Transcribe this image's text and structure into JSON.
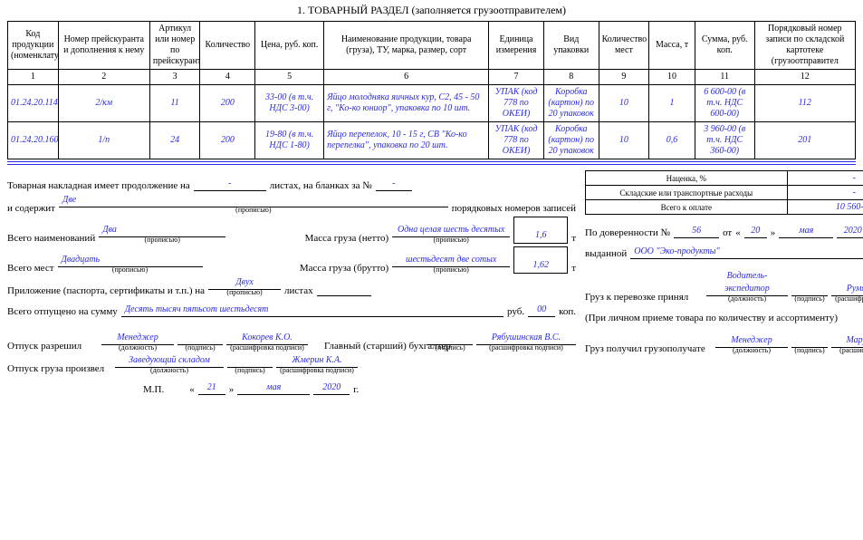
{
  "title": "1. ТОВАРНЫЙ РАЗДЕЛ (заполняется грузоотправителем)",
  "headers": {
    "c1": "Код продукции (номенклатурный",
    "c2": "Номер прейскуранта и дополнения к нему",
    "c3": "Артикул или номер по прейскуранту",
    "c4": "Количество",
    "c5": "Цена, руб. коп.",
    "c6": "Наименование продукции, товара (груза), ТУ, марка, размер, сорт",
    "c7": "Единица измерения",
    "c8": "Вид упаковки",
    "c9": "Количество мест",
    "c10": "Масса, т",
    "c11": "Сумма, руб. коп.",
    "c12": "Порядковый номер записи по складской картотеке (грузоотправител"
  },
  "nums": {
    "n1": "1",
    "n2": "2",
    "n3": "3",
    "n4": "4",
    "n5": "5",
    "n6": "6",
    "n7": "7",
    "n8": "8",
    "n9": "9",
    "n10": "10",
    "n11": "11",
    "n12": "12"
  },
  "rows": [
    {
      "c1": "01.24.20.114",
      "c2": "2/км",
      "c3": "11",
      "c4": "200",
      "c5": "33-00 (в т.ч. НДС 3-00)",
      "c6": "Яйцо молодняка яичных кур, С2, 45 - 50 г, \"Ко-ко юниор\", упаковка по 10 шт.",
      "c7": "УПАК (код 778 по ОКЕИ)",
      "c8": "Коробка (картон) по 20 упаковок",
      "c9": "10",
      "c10": "1",
      "c11": "6 600-00 (в т.ч. НДС 600-00)",
      "c12": "112"
    },
    {
      "c1": "01.24.20.160",
      "c2": "1/п",
      "c3": "24",
      "c4": "200",
      "c5": "19-80 (в т.ч. НДС 1-80)",
      "c6": "Яйцо перепелок, 10 - 15 г, СВ \"Ко-ко перепелка\", упаковка по 20 шт.",
      "c7": "УПАК (код 778 по ОКЕИ)",
      "c8": "Коробка (картон) по 20 упаковок",
      "c9": "10",
      "c10": "0,6",
      "c11": "3 960-00 (в т.ч. НДС 360-00)",
      "c12": "201"
    }
  ],
  "text": {
    "cont_prefix": "Товарная накладная имеет продолжение на",
    "cont_dash": "-",
    "cont_mid": "листах, на бланках за №",
    "cont_dash2": "-",
    "contains_prefix": "и содержит",
    "contains_val": "Две",
    "contains_suffix": "порядковых номеров записей",
    "propisyu": "(прописью)",
    "names_prefix": "Всего наименований",
    "names_val": "Два",
    "mass_net": "Масса груза (нетто)",
    "mass_net_words": "Одна целая шесть десятых",
    "mass_net_num": "1,6",
    "t": "т",
    "places_prefix": "Всего мест",
    "places_val": "Двадцать",
    "mass_gross": "Масса груза (брутто)",
    "mass_gross_words": "шестьдесят две сотых",
    "mass_gross_num": "1,62",
    "attach_prefix": "Приложение (паспорта, сертификаты и т.п.) на",
    "attach_val": "Двух",
    "attach_suffix": "листах",
    "sum_prefix": "Всего отпущено на сумму",
    "sum_words": "Десять тысяч пятьсот шестьдесят",
    "rub": "руб.",
    "kop_val": "00",
    "kop": "коп.",
    "rel_prefix": "Отпуск разрешил",
    "rel_pos": "Менеджер",
    "rel_name": "Кокорев К.О.",
    "chief": "Главный (старший) бухгалтер",
    "chief_name": "Рябушинская В.С.",
    "done_prefix": "Отпуск груза произвел",
    "done_pos": "Заведующий складом",
    "done_name": "Жмерин К.А.",
    "mp": "М.П.",
    "q1": "«",
    "q2": "»",
    "day": "21",
    "month": "мая",
    "year": "2020",
    "g": "г.",
    "dov_prefix": "По доверенности №",
    "dov_num": "56",
    "dov_ot": "от",
    "dov_day": "20",
    "dov_month": "мая",
    "dov_year": "2020",
    "issued_prefix": "выданной",
    "issued_val": "ООО \"Эко-продукты\"",
    "accept_prefix": "Груз к перевозке принял",
    "accept_pos": "Водитель-экспедитор",
    "accept_name": "Румянов В.О.",
    "personal": "(При личном приеме товара по количеству и ассортименту)",
    "recv_prefix": "Груз получил грузополучате",
    "recv_pos": "Менеджер",
    "recv_name": "Марусевич Ф.А.",
    "pos_cap": "(должность)",
    "sig_cap": "(подпись)",
    "name_cap": "(расшифровка подписи)",
    "markup": "Наценка, %",
    "markup_val": "-",
    "transport": "Складские или транспортные расходы",
    "transport_val": "-",
    "total": "Всего к оплате",
    "total_val": "10 560-00"
  }
}
